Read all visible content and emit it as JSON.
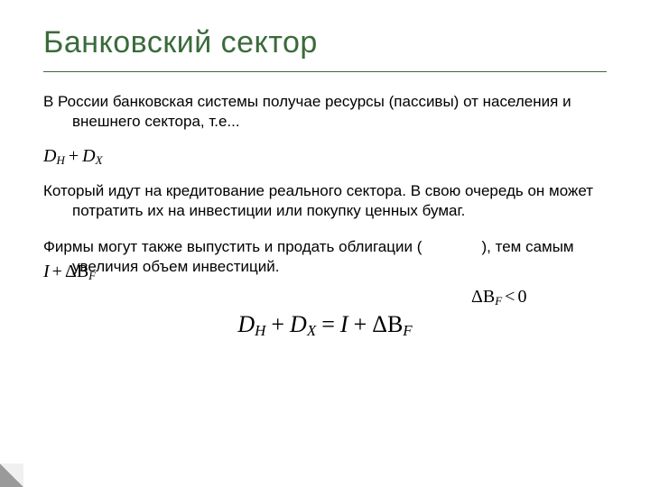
{
  "colors": {
    "title": "#3a6b3a",
    "rule": "#3a6b3a",
    "text": "#000000",
    "corner_light": "#f0f0f0",
    "corner_dark": "#9a9a9a",
    "bg": "#ffffff"
  },
  "title": "Банковский сектор",
  "paragraphs": {
    "p1": "В России банковская системы получае ресурсы (пассивы) от населения и внешнего сектора, т.е...",
    "p2": "Который идут на кредитование реального сектора. В свою очередь он может потратить их на инвестиции или покупку ценных бумаг.",
    "p3_pre": "Фирмы могут также выпустить и продать облигации (",
    "p3_post": "), тем самым увеличия объем инвестиций."
  },
  "formulas": {
    "f1": {
      "t1": "D",
      "s1": "H",
      "op": "+",
      "t2": "D",
      "s2": "X"
    },
    "overlay_left": {
      "t1": "I",
      "op": "+",
      "d": "ΔB",
      "s": "F"
    },
    "overlay_right": {
      "d": "ΔB",
      "s": "F",
      "op": "<",
      "v": "0"
    },
    "center": {
      "l1": "D",
      "ls1": "H",
      "p1": "+",
      "l2": "D",
      "ls2": "X",
      "eq": "=",
      "r1": "I",
      "p2": "+",
      "r2": "ΔB",
      "rs2": "F"
    }
  },
  "gap": "              "
}
